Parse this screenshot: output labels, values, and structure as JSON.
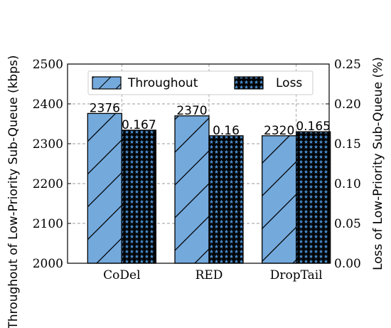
{
  "chart_data": {
    "type": "bar",
    "categories": [
      "CoDel",
      "RED",
      "DropTail"
    ],
    "series": [
      {
        "name": "Throughout",
        "axis": "left",
        "values": [
          2376,
          2370,
          2320
        ],
        "labels": [
          "2376",
          "2370",
          "2320"
        ],
        "color": "#74a9dc",
        "hatch": "diagonal"
      },
      {
        "name": "Loss",
        "axis": "right",
        "values": [
          0.167,
          0.16,
          0.165
        ],
        "labels": [
          "0.167",
          "0.16",
          "0.165"
        ],
        "color": "#4a8fd1",
        "hatch": "stars"
      }
    ],
    "ylabel": "Throughout of Low-Priority Sub-Queue (kbps)",
    "y2label": "Loss of Low-Priority Sub-Queue (%)",
    "ylim": [
      2000,
      2500
    ],
    "y2lim": [
      0.0,
      0.25
    ],
    "yticks": [
      "2000",
      "2100",
      "2200",
      "2300",
      "2400",
      "2500"
    ],
    "y2ticks": [
      "0.00",
      "0.05",
      "0.10",
      "0.15",
      "0.20",
      "0.25"
    ],
    "grid": true,
    "legend_position": "top-center"
  }
}
